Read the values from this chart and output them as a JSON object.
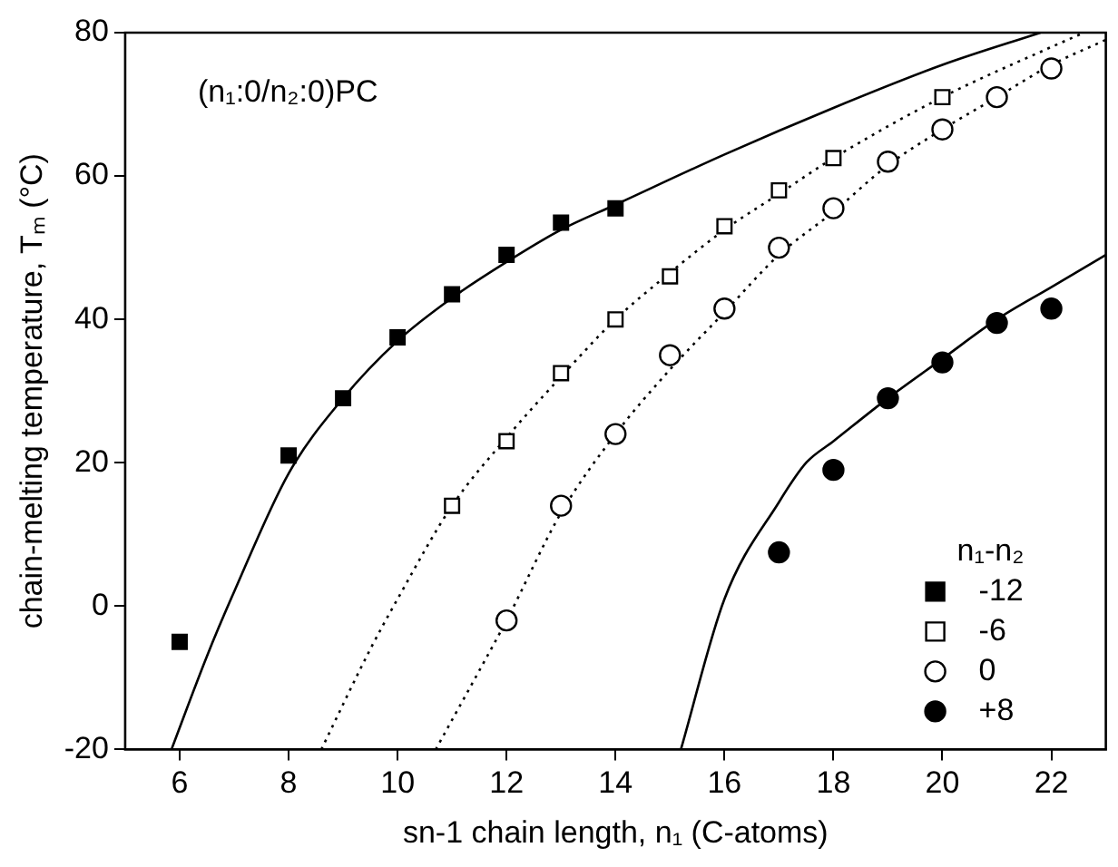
{
  "chart_data": {
    "type": "scatter",
    "xlabel": "sn-1 chain length, n₁ (C-atoms)",
    "ylabel": "chain-melting temperature, Tₘ (°C)",
    "legend_title": "n₁-n₂",
    "annotations": [
      "(n₁:0/n₂:0)PC"
    ],
    "xlim": [
      5,
      23
    ],
    "xticks": [
      6,
      8,
      10,
      12,
      14,
      16,
      18,
      20,
      22
    ],
    "ylim": [
      -20,
      80
    ],
    "yticks": [
      -20,
      0,
      20,
      40,
      60,
      80
    ],
    "grid": false,
    "legend": "bottom right",
    "series": [
      {
        "name": "-12",
        "type": "scatter",
        "marker": "square",
        "color": "#000000",
        "x": [
          6,
          8,
          9,
          10,
          11,
          12,
          13,
          14
        ],
        "values": [
          -5,
          21,
          29,
          37.5,
          43.5,
          49,
          53.5,
          55.5
        ]
      },
      {
        "name": "-6",
        "type": "scatter",
        "marker": "square",
        "color": "#ffffff",
        "x": [
          11,
          12,
          13,
          14,
          15,
          16,
          17,
          18,
          20
        ],
        "values": [
          14,
          23,
          32.5,
          40,
          46,
          53,
          58,
          62.5,
          71
        ]
      },
      {
        "name": "0",
        "type": "scatter",
        "marker": "circle",
        "color": "#ffffff",
        "x": [
          12,
          13,
          14,
          15,
          16,
          17,
          18,
          19,
          20,
          21,
          22
        ],
        "values": [
          -2,
          14,
          24,
          35,
          41.5,
          50,
          55.5,
          62,
          66.5,
          71,
          75
        ]
      },
      {
        "name": "+8",
        "type": "scatter",
        "marker": "circle",
        "color": "#000000",
        "x": [
          17,
          18,
          19,
          20,
          21,
          22
        ],
        "values": [
          7.5,
          19,
          29,
          34,
          39.5,
          41.5
        ]
      },
      {
        "type": "line",
        "marker": "none",
        "line_style": "solid",
        "color": "#000000",
        "x": [
          5.85,
          6.5,
          7,
          8,
          9,
          10,
          11,
          12,
          13,
          14,
          16,
          18,
          20,
          21.8
        ],
        "values": [
          -20,
          -7,
          2,
          18.5,
          29,
          37,
          43,
          48,
          52.5,
          56,
          63,
          69.5,
          75.5,
          80
        ]
      },
      {
        "type": "line",
        "marker": "none",
        "line_style": "dotted",
        "color": "#000000",
        "x": [
          8.6,
          9.5,
          10,
          11,
          12,
          13,
          14,
          15,
          16,
          17,
          18,
          20,
          22,
          22.6
        ],
        "values": [
          -20,
          -6,
          1,
          14,
          23.5,
          32,
          40,
          46.5,
          52.5,
          57.5,
          62.5,
          71,
          78,
          80
        ]
      },
      {
        "type": "line",
        "marker": "none",
        "line_style": "dotted",
        "color": "#000000",
        "x": [
          10.7,
          11.5,
          12,
          13,
          14,
          15,
          16,
          17,
          18,
          19,
          20,
          21,
          22,
          23
        ],
        "values": [
          -20,
          -9,
          -2,
          13,
          24,
          33,
          41,
          49,
          55,
          61.5,
          66.5,
          71,
          75.5,
          79
        ]
      },
      {
        "type": "line",
        "marker": "none",
        "line_style": "solid",
        "color": "#000000",
        "x": [
          15.2,
          16,
          17,
          17.5,
          18,
          19,
          20,
          21,
          22,
          23
        ],
        "values": [
          -20,
          1,
          14.5,
          20,
          23,
          29,
          34.5,
          40,
          44.5,
          49
        ]
      }
    ]
  }
}
